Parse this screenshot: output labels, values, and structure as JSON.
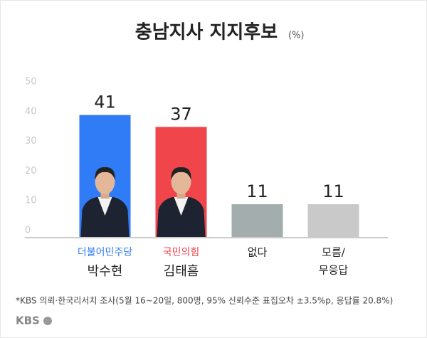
{
  "chart_data": {
    "type": "bar",
    "title": "충남지사 지지후보",
    "unit": "(%)",
    "parties": [
      "더불어민주당",
      "국민의힘",
      null,
      null
    ],
    "categories": [
      "박수현",
      "김태흠",
      "없다",
      [
        "모름/",
        "무응답"
      ]
    ],
    "values": [
      41,
      37,
      11,
      11
    ],
    "colors": [
      "#2f7cf6",
      "#f0454b",
      "#a3adae",
      "#c9c9c9"
    ],
    "ylim": [
      0,
      50
    ],
    "yticks": [
      0,
      10,
      20,
      30,
      40,
      50
    ],
    "grid": false,
    "note": "*KBS 의뢰·한국리서치 조사(5월 16~20일, 800명, 95% 신뢰수준 표집오차 ±3.5%p, 응답률 20.8%)",
    "logo": "KBS"
  }
}
